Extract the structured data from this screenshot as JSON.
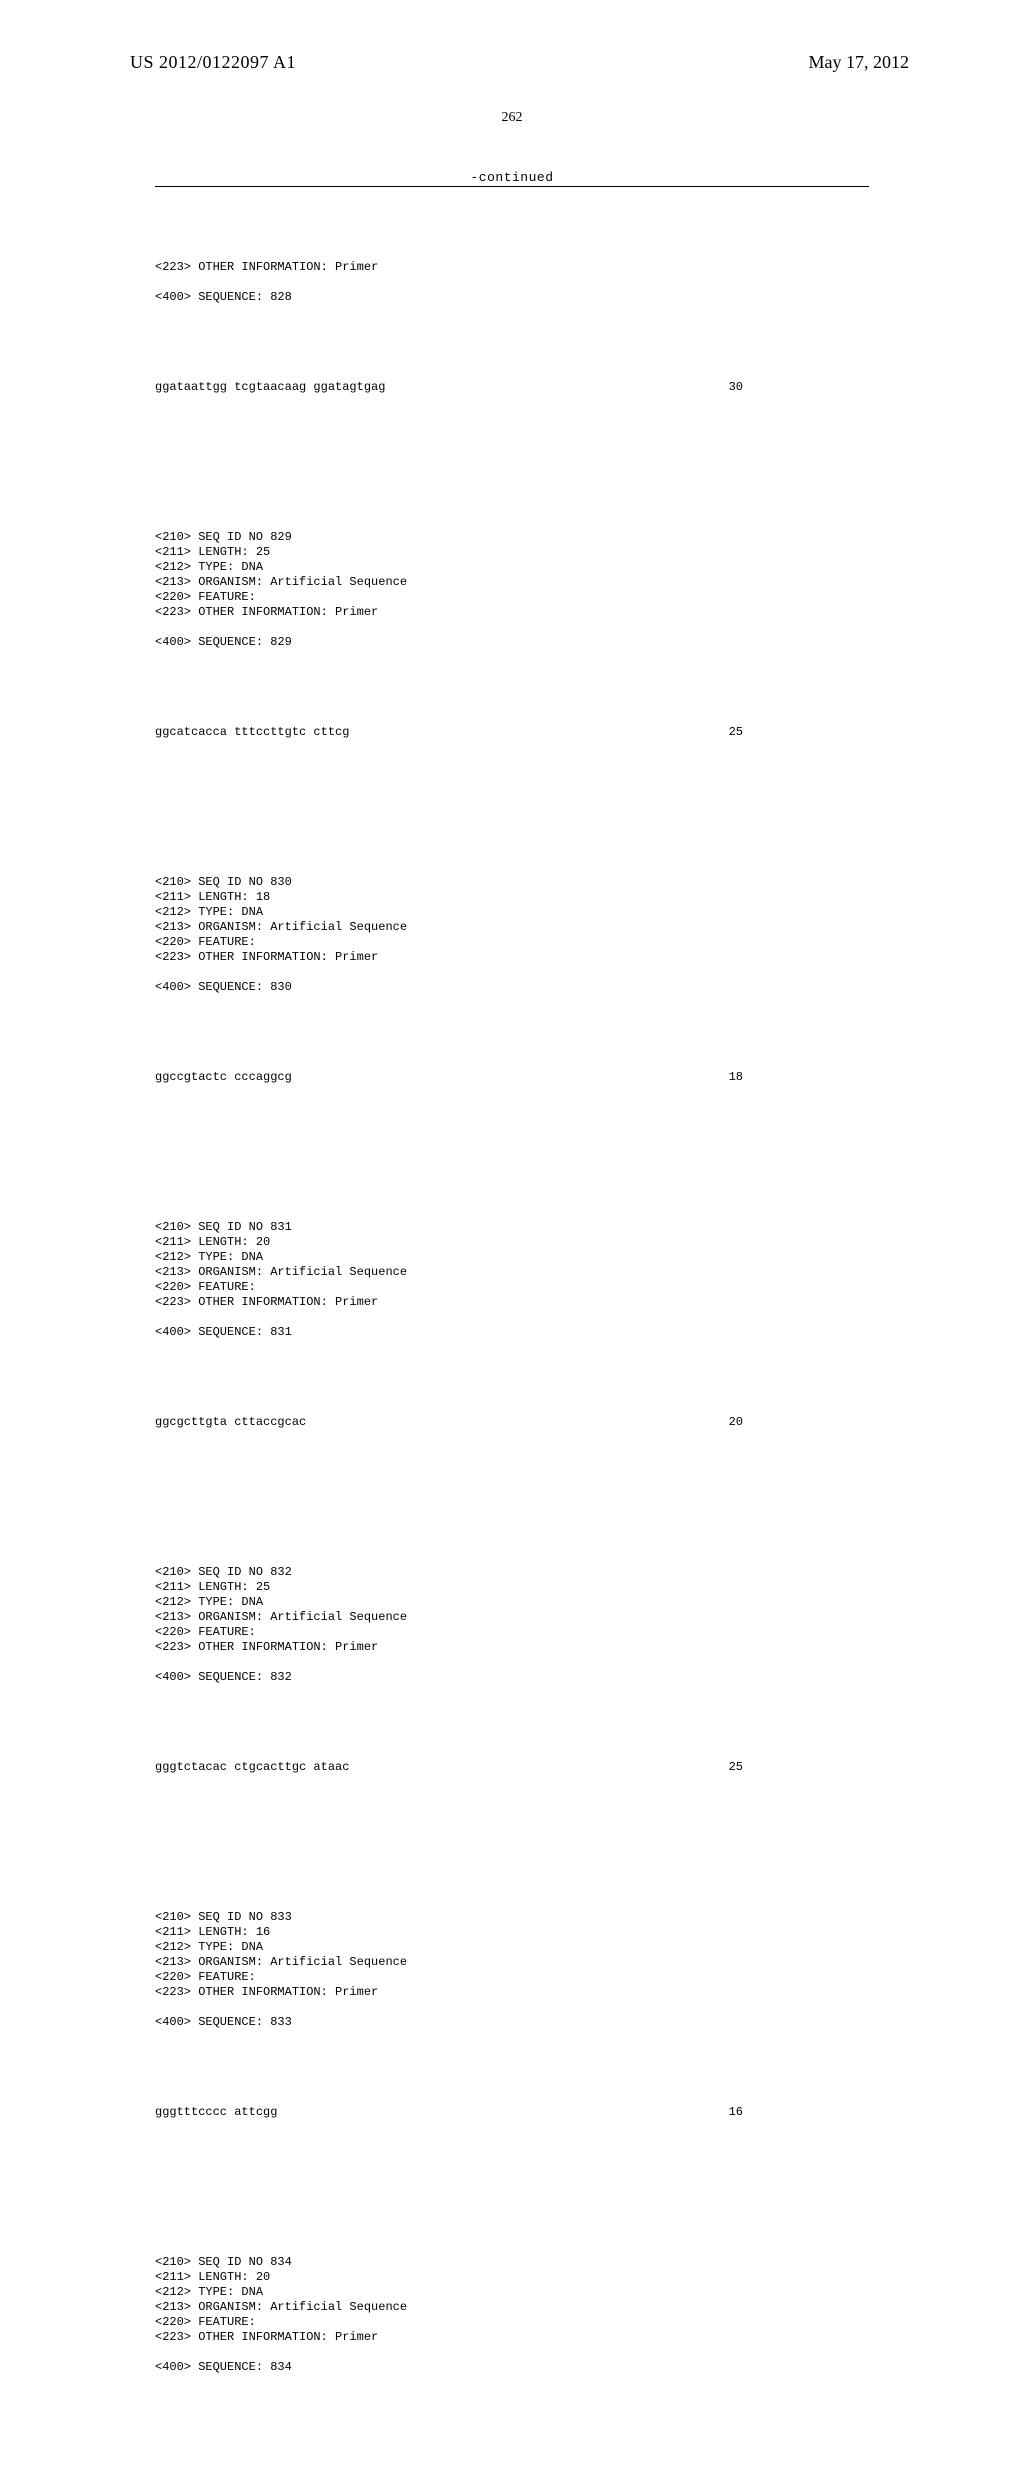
{
  "header": {
    "left": "US 2012/0122097 A1",
    "right": "May 17, 2012"
  },
  "page_number": "262",
  "continued_label": "-continued",
  "blocks": [
    {
      "pre": "<223> OTHER INFORMATION: Primer\n\n<400> SEQUENCE: 828",
      "seq": "ggataattgg tcgtaacaag ggatagtgag",
      "len": "30"
    },
    {
      "pre": "<210> SEQ ID NO 829\n<211> LENGTH: 25\n<212> TYPE: DNA\n<213> ORGANISM: Artificial Sequence\n<220> FEATURE:\n<223> OTHER INFORMATION: Primer\n\n<400> SEQUENCE: 829",
      "seq": "ggcatcacca tttccttgtc cttcg",
      "len": "25"
    },
    {
      "pre": "<210> SEQ ID NO 830\n<211> LENGTH: 18\n<212> TYPE: DNA\n<213> ORGANISM: Artificial Sequence\n<220> FEATURE:\n<223> OTHER INFORMATION: Primer\n\n<400> SEQUENCE: 830",
      "seq": "ggccgtactc cccaggcg",
      "len": "18"
    },
    {
      "pre": "<210> SEQ ID NO 831\n<211> LENGTH: 20\n<212> TYPE: DNA\n<213> ORGANISM: Artificial Sequence\n<220> FEATURE:\n<223> OTHER INFORMATION: Primer\n\n<400> SEQUENCE: 831",
      "seq": "ggcgcttgta cttaccgcac",
      "len": "20"
    },
    {
      "pre": "<210> SEQ ID NO 832\n<211> LENGTH: 25\n<212> TYPE: DNA\n<213> ORGANISM: Artificial Sequence\n<220> FEATURE:\n<223> OTHER INFORMATION: Primer\n\n<400> SEQUENCE: 832",
      "seq": "gggtctacac ctgcacttgc ataac",
      "len": "25"
    },
    {
      "pre": "<210> SEQ ID NO 833\n<211> LENGTH: 16\n<212> TYPE: DNA\n<213> ORGANISM: Artificial Sequence\n<220> FEATURE:\n<223> OTHER INFORMATION: Primer\n\n<400> SEQUENCE: 833",
      "seq": "gggtttcccc attcgg",
      "len": "16"
    },
    {
      "pre": "<210> SEQ ID NO 834\n<211> LENGTH: 20\n<212> TYPE: DNA\n<213> ORGANISM: Artificial Sequence\n<220> FEATURE:\n<223> OTHER INFORMATION: Primer\n\n<400> SEQUENCE: 834",
      "seq": "",
      "len": ""
    }
  ]
}
